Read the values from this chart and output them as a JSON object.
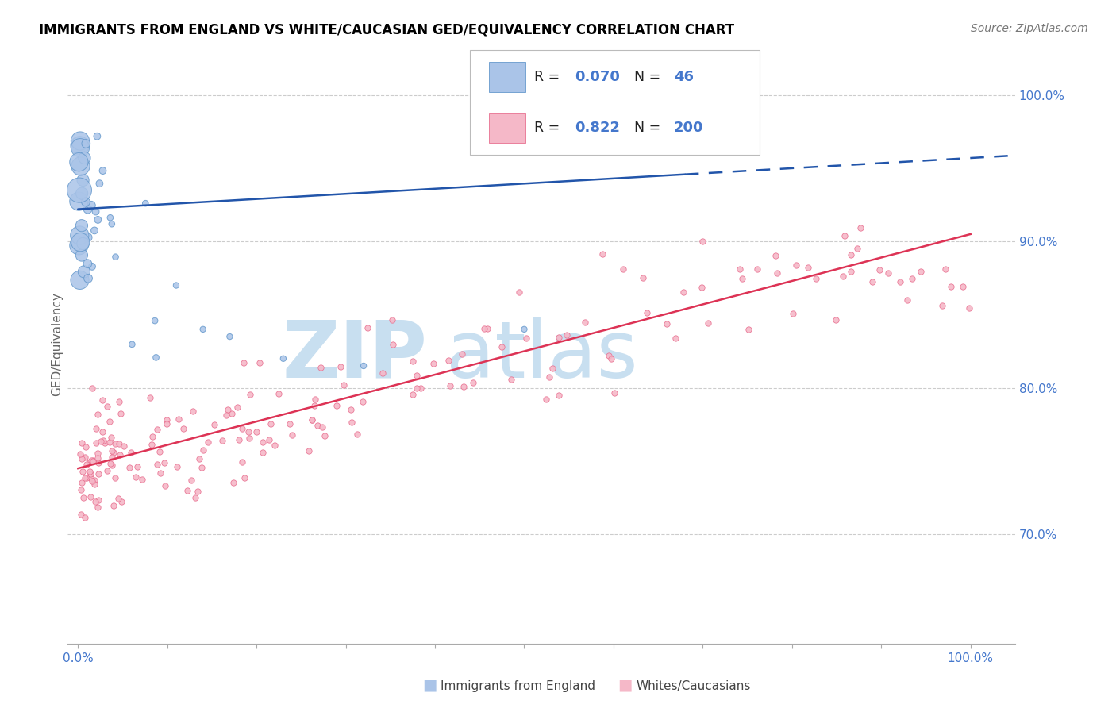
{
  "title": "IMMIGRANTS FROM ENGLAND VS WHITE/CAUCASIAN GED/EQUIVALENCY CORRELATION CHART",
  "source": "Source: ZipAtlas.com",
  "ylabel": "GED/Equivalency",
  "y_tick_vals": [
    0.7,
    0.8,
    0.9,
    1.0
  ],
  "y_tick_labels": [
    "70.0%",
    "80.0%",
    "90.0%",
    "100.0%"
  ],
  "legend_blue_R": "0.070",
  "legend_blue_N": "46",
  "legend_pink_R": "0.822",
  "legend_pink_N": "200",
  "blue_color": "#aac4e8",
  "blue_edge_color": "#6699cc",
  "pink_color": "#f5b8c8",
  "pink_edge_color": "#e87090",
  "blue_line_color": "#2255aa",
  "pink_line_color": "#dd3355",
  "blue_line_y0": 0.922,
  "blue_line_y1": 0.957,
  "blue_line_solid_x1": 0.68,
  "pink_line_y0": 0.745,
  "pink_line_y1": 0.905,
  "ylim_min": 0.625,
  "ylim_max": 1.035,
  "xlim_min": -0.012,
  "xlim_max": 1.05,
  "grid_color": "#cccccc",
  "watermark_zip_color": "#c8dff0",
  "watermark_atlas_color": "#c8dff0",
  "tick_label_color": "#4477cc",
  "ylabel_color": "#666666",
  "legend_box_edge": "#bbbbbb"
}
